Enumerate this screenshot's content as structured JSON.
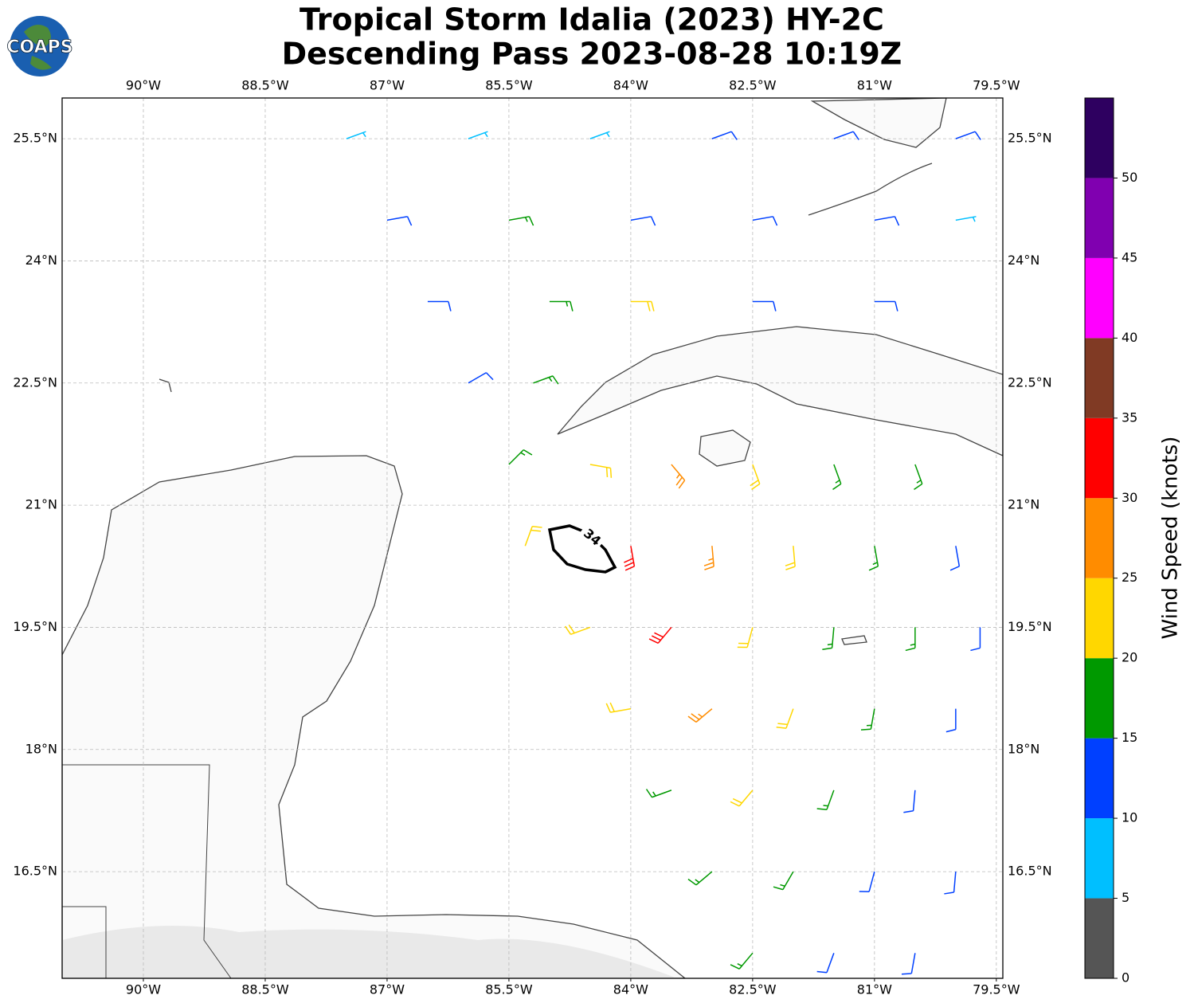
{
  "logo": {
    "text": "COAPS"
  },
  "chart_data": {
    "type": "barbs",
    "title": [
      "Tropical Storm Idalia (2023) HY-2C",
      "Descending Pass 2023-08-28 10:19Z"
    ],
    "xlim": [
      -91,
      -79.42
    ],
    "ylim": [
      15.19,
      26
    ],
    "xticks": [
      {
        "value": -90,
        "label": "90°W"
      },
      {
        "value": -88.5,
        "label": "88.5°W"
      },
      {
        "value": -87,
        "label": "87°W"
      },
      {
        "value": -85.5,
        "label": "85.5°W"
      },
      {
        "value": -84,
        "label": "84°W"
      },
      {
        "value": -82.5,
        "label": "82.5°W"
      },
      {
        "value": -81,
        "label": "81°W"
      },
      {
        "value": -79.5,
        "label": "79.5°W"
      }
    ],
    "yticks": [
      {
        "value": 16.5,
        "label": "16.5°N"
      },
      {
        "value": 18,
        "label": "18°N"
      },
      {
        "value": 19.5,
        "label": "19.5°N"
      },
      {
        "value": 21,
        "label": "21°N"
      },
      {
        "value": 22.5,
        "label": "22.5°N"
      },
      {
        "value": 24,
        "label": "24°N"
      },
      {
        "value": 25.5,
        "label": "25.5°N"
      }
    ],
    "grid": true,
    "contour": {
      "value": 34,
      "label": "34"
    },
    "barbs": {
      "lon": [
        -87.5,
        -86,
        -84.5,
        -83,
        -81.5,
        -80,
        -87,
        -85.5,
        -84,
        -82.5,
        -81,
        -80,
        -86.5,
        -85,
        -84,
        -82.5,
        -81,
        -86,
        -85.2,
        -85.5,
        -84.5,
        -83.5,
        -82.5,
        -81.5,
        -80.5,
        -85.3,
        -84,
        -83,
        -82,
        -81,
        -80,
        -84.5,
        -83.5,
        -82.5,
        -81.5,
        -80.5,
        -79.7,
        -84,
        -83,
        -82,
        -81,
        -80,
        -83.5,
        -82.5,
        -81.5,
        -80.5,
        -83,
        -82,
        -81,
        -80,
        -82.5,
        -81.5,
        -80.5
      ],
      "lat": [
        25.5,
        25.5,
        25.5,
        25.5,
        25.5,
        25.5,
        24.5,
        24.5,
        24.5,
        24.5,
        24.5,
        24.5,
        23.5,
        23.5,
        23.5,
        23.5,
        23.5,
        22.5,
        22.5,
        21.5,
        21.5,
        21.5,
        21.5,
        21.5,
        21.5,
        20.5,
        20.5,
        20.5,
        20.5,
        20.5,
        20.5,
        19.5,
        19.5,
        19.5,
        19.5,
        19.5,
        19.5,
        18.5,
        18.5,
        18.5,
        18.5,
        18.5,
        17.5,
        17.5,
        17.5,
        17.5,
        16.5,
        16.5,
        16.5,
        16.5,
        15.5,
        15.5,
        15.5
      ],
      "speed": [
        8,
        8,
        8,
        12,
        12,
        12,
        12,
        17,
        13,
        12,
        12,
        9,
        12,
        18,
        22,
        12,
        12,
        13,
        18,
        15,
        22,
        27,
        22,
        18,
        17,
        20,
        33,
        27,
        20,
        17,
        13,
        22,
        30,
        23,
        18,
        17,
        12,
        20,
        25,
        20,
        17,
        12,
        17,
        22,
        17,
        13,
        17,
        17,
        13,
        13,
        17,
        13,
        12
      ],
      "direction": [
        70,
        70,
        70,
        70,
        70,
        70,
        80,
        80,
        80,
        80,
        80,
        80,
        90,
        90,
        90,
        90,
        90,
        60,
        70,
        45,
        100,
        140,
        160,
        160,
        160,
        20,
        170,
        175,
        175,
        170,
        170,
        250,
        220,
        195,
        185,
        180,
        180,
        260,
        230,
        200,
        190,
        180,
        250,
        220,
        200,
        185,
        230,
        210,
        195,
        185,
        220,
        200,
        190
      ]
    },
    "colorbar": {
      "label": "Wind Speed (knots)",
      "levels": [
        0,
        5,
        10,
        15,
        20,
        25,
        30,
        35,
        40,
        45,
        50,
        55
      ],
      "colors": [
        "#555555",
        "#00bfff",
        "#0040ff",
        "#009900",
        "#ffd700",
        "#ff8c00",
        "#ff0000",
        "#803a24",
        "#ff00ff",
        "#8000b0",
        "#2e0060"
      ],
      "ticks": [
        0,
        5,
        10,
        15,
        20,
        25,
        30,
        35,
        40,
        45,
        50
      ]
    }
  }
}
